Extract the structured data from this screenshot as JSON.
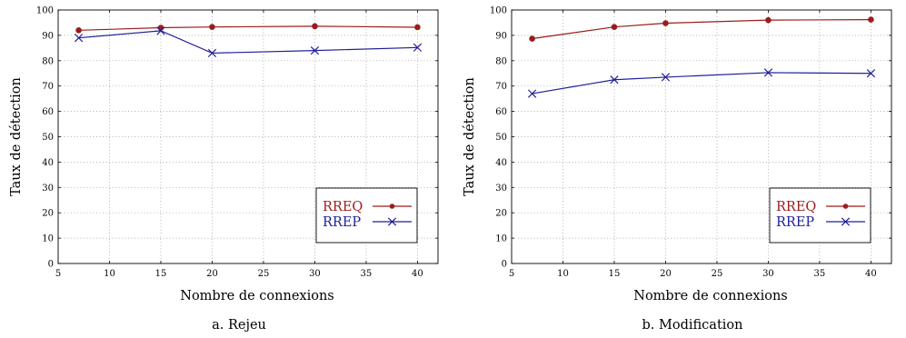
{
  "chart_data": [
    {
      "type": "line",
      "caption": "a. Rejeu",
      "xlabel": "Nombre de connexions",
      "ylabel": "Taux de détection",
      "xlim": [
        5,
        42
      ],
      "ylim": [
        0,
        100
      ],
      "xticks": [
        5,
        10,
        15,
        20,
        25,
        30,
        35,
        40
      ],
      "yticks": [
        0,
        10,
        20,
        30,
        40,
        50,
        60,
        70,
        80,
        90,
        100
      ],
      "grid": true,
      "legend_position": "bottom-right",
      "x": [
        7,
        15,
        20,
        30,
        40
      ],
      "series": [
        {
          "name": "RREQ",
          "color": "#9b1c1c",
          "marker": "circle",
          "values": [
            92,
            93,
            93.3,
            93.6,
            93.2
          ]
        },
        {
          "name": "RREP",
          "color": "#1f1f9a",
          "marker": "x",
          "values": [
            89,
            91.8,
            83,
            84,
            85.2
          ]
        }
      ]
    },
    {
      "type": "line",
      "caption": "b. Modification",
      "xlabel": "Nombre de connexions",
      "ylabel": "Taux de détection",
      "xlim": [
        5,
        42
      ],
      "ylim": [
        0,
        100
      ],
      "xticks": [
        5,
        10,
        15,
        20,
        25,
        30,
        35,
        40
      ],
      "yticks": [
        0,
        10,
        20,
        30,
        40,
        50,
        60,
        70,
        80,
        90,
        100
      ],
      "grid": true,
      "legend_position": "bottom-right",
      "x": [
        7,
        15,
        20,
        30,
        40
      ],
      "series": [
        {
          "name": "RREQ",
          "color": "#9b1c1c",
          "marker": "circle",
          "values": [
            88.7,
            93.3,
            94.8,
            96,
            96.2
          ]
        },
        {
          "name": "RREP",
          "color": "#1f1f9a",
          "marker": "x",
          "values": [
            67,
            72.5,
            73.5,
            75.3,
            75
          ]
        }
      ]
    }
  ]
}
